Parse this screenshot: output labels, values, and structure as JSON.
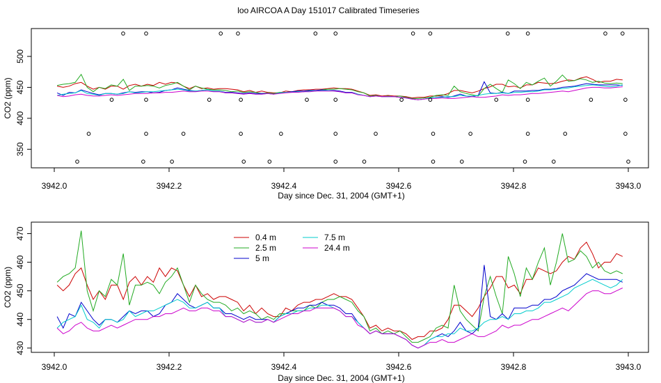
{
  "title": "loo AIRCOA A  Day 151017  Calibrated Timeseries",
  "chart_data": [
    {
      "type": "line",
      "xlabel": "Day since Dec. 31, 2004 (GMT+1)",
      "ylabel": "CO2 (ppm)",
      "xlim": [
        3942.0,
        3943.0
      ],
      "ylim": [
        320,
        545
      ],
      "xticks": [
        "3942.0",
        "3942.2",
        "3942.4",
        "3942.6",
        "3942.8",
        "3943.0"
      ],
      "yticks": [
        "350",
        "400",
        "450",
        "500"
      ],
      "grid": false,
      "series": [
        {
          "key": "s04",
          "color": "#cc0000",
          "values": [
            452,
            450,
            452,
            456,
            458,
            452,
            447,
            450,
            447,
            452,
            452,
            447,
            453,
            455,
            452,
            455,
            453,
            458,
            455,
            458,
            457,
            452,
            448,
            452,
            448,
            449,
            447,
            448,
            448,
            447,
            446,
            443,
            445,
            442,
            444,
            442,
            441,
            441,
            444,
            443,
            445,
            446,
            446,
            447,
            447,
            448,
            449,
            448,
            448,
            447,
            444,
            441,
            437,
            438,
            436,
            437,
            436,
            436,
            435,
            433,
            434,
            434,
            436,
            436,
            437,
            440,
            445,
            445,
            443,
            441,
            444,
            448,
            451,
            455,
            455,
            451,
            452,
            449,
            454,
            454,
            458,
            457,
            456,
            457,
            460,
            462,
            461,
            465,
            467,
            463,
            458,
            460,
            460,
            463,
            462
          ]
        },
        {
          "key": "s25",
          "color": "#22aa22",
          "values": [
            453,
            455,
            456,
            458,
            471,
            450,
            443,
            450,
            448,
            454,
            452,
            463,
            445,
            452,
            452,
            453,
            452,
            449,
            453,
            455,
            458,
            452,
            446,
            452,
            449,
            447,
            446,
            446,
            445,
            443,
            444,
            442,
            443,
            442,
            440,
            441,
            440,
            442,
            442,
            443,
            443,
            443,
            445,
            444,
            446,
            447,
            447,
            448,
            447,
            446,
            443,
            441,
            436,
            437,
            435,
            436,
            435,
            436,
            434,
            432,
            432,
            433,
            434,
            437,
            438,
            437,
            452,
            443,
            440,
            438,
            436,
            448,
            455,
            448,
            442,
            462,
            456,
            448,
            458,
            454,
            460,
            465,
            452,
            460,
            470,
            460,
            461,
            464,
            462,
            458,
            460,
            457,
            456,
            457,
            456
          ]
        },
        {
          "key": "s5",
          "color": "#0000cc",
          "values": [
            441,
            437,
            442,
            441,
            446,
            443,
            440,
            438,
            440,
            440,
            439,
            441,
            443,
            442,
            443,
            443,
            441,
            442,
            445,
            446,
            449,
            447,
            445,
            444,
            445,
            446,
            444,
            444,
            442,
            442,
            441,
            440,
            441,
            440,
            440,
            440,
            439,
            441,
            442,
            443,
            444,
            444,
            445,
            445,
            446,
            445,
            445,
            444,
            442,
            442,
            439,
            437,
            435,
            436,
            435,
            435,
            435,
            434,
            433,
            431,
            430,
            431,
            433,
            434,
            435,
            434,
            436,
            439,
            436,
            435,
            437,
            459,
            441,
            440,
            442,
            440,
            444,
            444,
            444,
            445,
            445,
            447,
            447,
            448,
            450,
            451,
            452,
            454,
            456,
            455,
            454,
            454,
            454,
            454,
            453
          ]
        },
        {
          "key": "s75",
          "color": "#00cccc",
          "values": [
            437,
            439,
            440,
            441,
            445,
            440,
            439,
            437,
            440,
            440,
            439,
            440,
            443,
            441,
            442,
            443,
            443,
            444,
            445,
            446,
            447,
            446,
            444,
            444,
            445,
            446,
            444,
            444,
            441,
            441,
            440,
            439,
            440,
            439,
            439,
            440,
            439,
            441,
            442,
            442,
            443,
            443,
            444,
            444,
            445,
            445,
            444,
            443,
            441,
            441,
            439,
            437,
            435,
            436,
            435,
            435,
            435,
            434,
            433,
            431,
            430,
            431,
            433,
            434,
            434,
            435,
            435,
            437,
            436,
            436,
            437,
            439,
            440,
            440,
            441,
            440,
            442,
            442,
            443,
            443,
            444,
            446,
            446,
            447,
            448,
            449,
            451,
            452,
            453,
            454,
            453,
            452,
            451,
            452,
            454
          ]
        },
        {
          "key": "s244",
          "color": "#cc00cc",
          "values": [
            437,
            435,
            436,
            438,
            439,
            437,
            436,
            436,
            437,
            438,
            437,
            438,
            439,
            440,
            440,
            440,
            441,
            441,
            442,
            442,
            443,
            444,
            443,
            443,
            444,
            444,
            443,
            443,
            441,
            441,
            440,
            439,
            440,
            439,
            439,
            440,
            439,
            440,
            441,
            442,
            442,
            443,
            443,
            444,
            444,
            444,
            444,
            443,
            441,
            441,
            438,
            437,
            435,
            436,
            435,
            435,
            435,
            434,
            433,
            431,
            430,
            431,
            432,
            432,
            433,
            432,
            432,
            433,
            434,
            435,
            434,
            434,
            435,
            436,
            438,
            437,
            438,
            438,
            439,
            440,
            440,
            441,
            442,
            443,
            444,
            443,
            445,
            447,
            449,
            450,
            450,
            449,
            449,
            450,
            451
          ]
        }
      ],
      "points": [
        {
          "x": 3942.04,
          "y": 330
        },
        {
          "x": 3942.06,
          "y": 375
        },
        {
          "x": 3942.1,
          "y": 430
        },
        {
          "x": 3942.12,
          "y": 537
        },
        {
          "x": 3942.155,
          "y": 330
        },
        {
          "x": 3942.16,
          "y": 375
        },
        {
          "x": 3942.16,
          "y": 430
        },
        {
          "x": 3942.16,
          "y": 537
        },
        {
          "x": 3942.205,
          "y": 330
        },
        {
          "x": 3942.225,
          "y": 375
        },
        {
          "x": 3942.27,
          "y": 430
        },
        {
          "x": 3942.29,
          "y": 537
        },
        {
          "x": 3942.32,
          "y": 537
        },
        {
          "x": 3942.325,
          "y": 430
        },
        {
          "x": 3942.325,
          "y": 375
        },
        {
          "x": 3942.33,
          "y": 330
        },
        {
          "x": 3942.375,
          "y": 330
        },
        {
          "x": 3942.395,
          "y": 375
        },
        {
          "x": 3942.44,
          "y": 430
        },
        {
          "x": 3942.455,
          "y": 537
        },
        {
          "x": 3942.49,
          "y": 330
        },
        {
          "x": 3942.49,
          "y": 375
        },
        {
          "x": 3942.49,
          "y": 430
        },
        {
          "x": 3942.49,
          "y": 537
        },
        {
          "x": 3942.54,
          "y": 330
        },
        {
          "x": 3942.56,
          "y": 375
        },
        {
          "x": 3942.605,
          "y": 430
        },
        {
          "x": 3942.625,
          "y": 537
        },
        {
          "x": 3942.655,
          "y": 537
        },
        {
          "x": 3942.655,
          "y": 430
        },
        {
          "x": 3942.66,
          "y": 375
        },
        {
          "x": 3942.66,
          "y": 330
        },
        {
          "x": 3942.71,
          "y": 330
        },
        {
          "x": 3942.725,
          "y": 375
        },
        {
          "x": 3942.77,
          "y": 430
        },
        {
          "x": 3942.79,
          "y": 537
        },
        {
          "x": 3942.82,
          "y": 330
        },
        {
          "x": 3942.825,
          "y": 375
        },
        {
          "x": 3942.825,
          "y": 430
        },
        {
          "x": 3942.825,
          "y": 537
        },
        {
          "x": 3942.87,
          "y": 330
        },
        {
          "x": 3942.89,
          "y": 375
        },
        {
          "x": 3942.935,
          "y": 430
        },
        {
          "x": 3942.96,
          "y": 537
        },
        {
          "x": 3942.99,
          "y": 537
        },
        {
          "x": 3942.995,
          "y": 430
        },
        {
          "x": 3942.995,
          "y": 375
        },
        {
          "x": 3943.0,
          "y": 330
        }
      ]
    },
    {
      "type": "line",
      "xlabel": "Day since Dec. 31, 2004 (GMT+1)",
      "ylabel": "CO2 (ppm)",
      "xlim": [
        3942.0,
        3943.0
      ],
      "ylim": [
        428.5,
        474
      ],
      "xticks": [
        "3942.0",
        "3942.2",
        "3942.4",
        "3942.6",
        "3942.8",
        "3943.0"
      ],
      "yticks": [
        "430",
        "440",
        "450",
        "460",
        "470"
      ],
      "grid": false,
      "legend_position": "top-center",
      "legend": [
        {
          "name": "0.4 m",
          "key": "s04"
        },
        {
          "name": "2.5 m",
          "key": "s25"
        },
        {
          "name": "5 m",
          "key": "s5"
        },
        {
          "name": "7.5 m",
          "key": "s75"
        },
        {
          "name": "24.4 m",
          "key": "s244"
        }
      ],
      "series_ref": "same as panel 1"
    }
  ]
}
